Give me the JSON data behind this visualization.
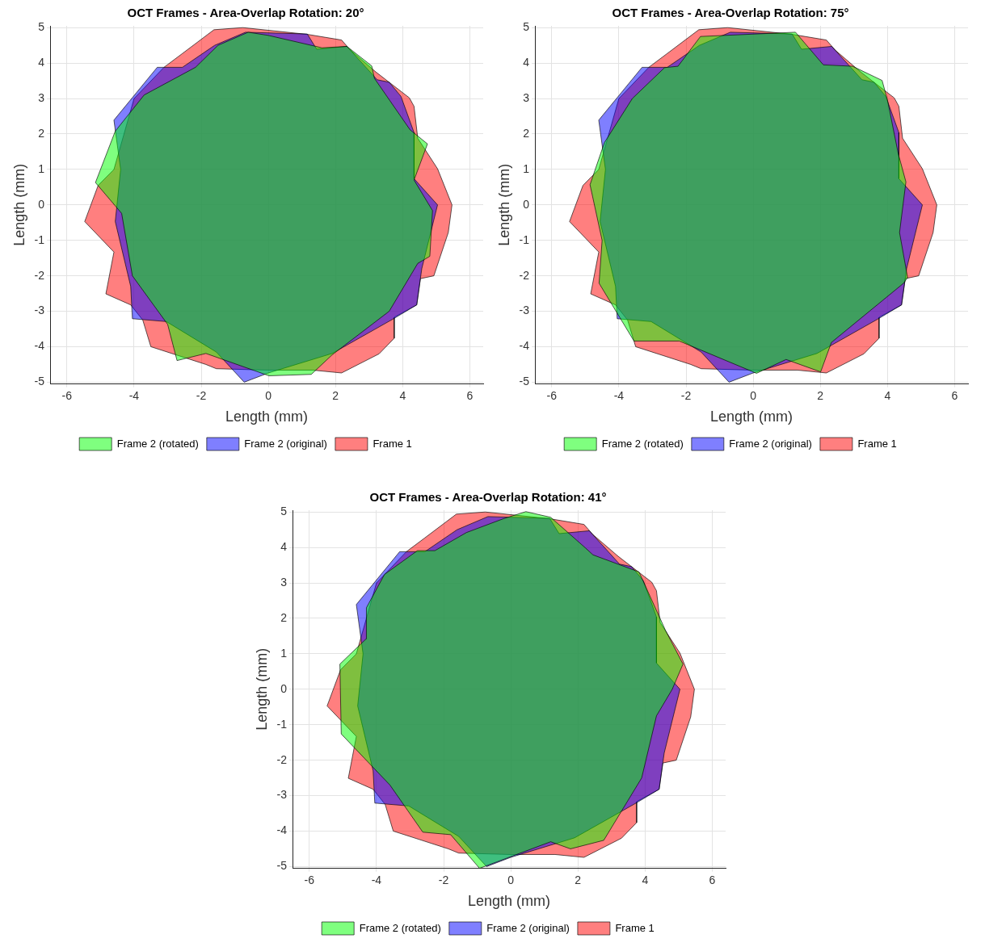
{
  "chart_data": [
    {
      "type": "area",
      "title": "OCT Frames - Area-Overlap Rotation: 20°",
      "xlabel": "Length (mm)",
      "ylabel": "Length (mm)",
      "xlim": [
        -6.5,
        6.4
      ],
      "ylim": [
        -5.05,
        5.05
      ],
      "xticks": [
        -6,
        -4,
        -2,
        0,
        2,
        4,
        6
      ],
      "yticks": [
        -5,
        -4,
        -3,
        -2,
        -1,
        0,
        1,
        2,
        3,
        4,
        5
      ],
      "grid": true,
      "legend": "bottom",
      "series": [
        {
          "name": "Frame 1",
          "color": "#ff0000",
          "x": [
            -0.76,
            1.16,
            2.18,
            2.45,
            3.2,
            4.2,
            4.34,
            4.45,
            5.04,
            5.47,
            5.36,
            4.93,
            4.53,
            4.42,
            3.75,
            3.75,
            3.3,
            2.18,
            1.32,
            0.0,
            -1.55,
            -1.86,
            -3.5,
            -3.74,
            -4.1,
            -4.84,
            -4.6,
            -5.47,
            -5.07,
            -4.6,
            -4.0,
            -3.11,
            -2.56,
            -1.62
          ],
          "values": [
            5.0,
            4.81,
            4.65,
            4.36,
            3.75,
            3.02,
            2.78,
            1.88,
            1.02,
            0.0,
            -0.78,
            -2.0,
            -2.08,
            -2.82,
            -3.17,
            -3.76,
            -4.2,
            -4.74,
            -4.66,
            -4.66,
            -4.62,
            -4.5,
            -4.0,
            -3.25,
            -2.82,
            -2.51,
            -1.33,
            -0.47,
            0.55,
            1.0,
            3.0,
            3.88,
            4.27,
            4.94
          ]
        },
        {
          "name": "Frame 2 (original)",
          "color": "#0000ff",
          "x": [
            -0.68,
            1.16,
            1.44,
            2.34,
            3.24,
            3.6,
            3.95,
            4.34,
            4.34,
            5.04,
            4.57,
            4.42,
            3.75,
            1.9,
            0.0,
            -0.72,
            -1.55,
            -3.04,
            -4.05,
            -4.1,
            -4.56,
            -4.4,
            -4.6,
            -3.31,
            -2.56,
            -1.6
          ],
          "values": [
            4.87,
            4.82,
            4.39,
            4.47,
            3.53,
            3.46,
            3.06,
            2.04,
            0.74,
            0.0,
            -1.8,
            -2.82,
            -3.2,
            -4.19,
            -4.74,
            -5.0,
            -4.15,
            -3.29,
            -3.21,
            -2.3,
            -0.47,
            1.0,
            2.39,
            3.88,
            3.88,
            4.5
          ]
        },
        {
          "name": "Frame 2 (rotated)",
          "color": "#00ff00",
          "x": [
            -0.6,
            0.0,
            1.6,
            2.34,
            3.08,
            3.16,
            4.22,
            4.74,
            4.34,
            4.89,
            4.81,
            4.45,
            3.6,
            1.9,
            1.28,
            0.02,
            -1.86,
            -2.72,
            -3.0,
            -4.05,
            -4.37,
            -5.15,
            -4.56,
            -3.7,
            -2.17,
            -1.5
          ],
          "values": [
            4.87,
            4.78,
            4.43,
            4.47,
            3.92,
            3.57,
            2.12,
            1.72,
            0.7,
            -0.16,
            -1.45,
            -1.65,
            -3.0,
            -4.23,
            -4.78,
            -4.82,
            -4.19,
            -4.39,
            -3.37,
            -2.0,
            -0.24,
            0.63,
            2.08,
            3.1,
            3.88,
            4.5
          ]
        }
      ]
    },
    {
      "type": "area",
      "title": "OCT Frames - Area-Overlap Rotation: 75°",
      "xlabel": "Length (mm)",
      "ylabel": "Length (mm)",
      "xlim": [
        -6.5,
        6.4
      ],
      "ylim": [
        -5.05,
        5.05
      ],
      "xticks": [
        -6,
        -4,
        -2,
        0,
        2,
        4,
        6
      ],
      "yticks": [
        -5,
        -4,
        -3,
        -2,
        -1,
        0,
        1,
        2,
        3,
        4,
        5
      ],
      "grid": true,
      "legend": "bottom",
      "series": [
        {
          "name": "Frame 1",
          "color": "#ff0000",
          "x": [
            -0.76,
            1.16,
            2.18,
            2.45,
            3.2,
            4.2,
            4.34,
            4.45,
            5.04,
            5.47,
            5.36,
            4.93,
            4.53,
            4.42,
            3.75,
            3.75,
            3.3,
            2.18,
            1.32,
            0.0,
            -1.55,
            -1.86,
            -3.5,
            -3.74,
            -4.1,
            -4.84,
            -4.6,
            -5.47,
            -5.07,
            -4.6,
            -4.0,
            -3.11,
            -2.56,
            -1.62
          ],
          "values": [
            5.0,
            4.81,
            4.65,
            4.36,
            3.75,
            3.02,
            2.78,
            1.88,
            1.02,
            0.0,
            -0.78,
            -2.0,
            -2.08,
            -2.82,
            -3.17,
            -3.76,
            -4.2,
            -4.74,
            -4.66,
            -4.66,
            -4.62,
            -4.5,
            -4.0,
            -3.25,
            -2.82,
            -2.51,
            -1.33,
            -0.47,
            0.55,
            1.0,
            3.0,
            3.88,
            4.27,
            4.94
          ]
        },
        {
          "name": "Frame 2 (original)",
          "color": "#0000ff",
          "x": [
            -0.68,
            1.16,
            1.44,
            2.34,
            3.24,
            3.6,
            3.95,
            4.34,
            4.34,
            5.04,
            4.57,
            4.42,
            3.75,
            1.9,
            0.0,
            -0.72,
            -1.55,
            -3.04,
            -4.05,
            -4.1,
            -4.56,
            -4.4,
            -4.6,
            -3.31,
            -2.56,
            -1.6
          ],
          "values": [
            4.87,
            4.82,
            4.39,
            4.47,
            3.53,
            3.46,
            3.06,
            2.04,
            0.74,
            0.0,
            -1.8,
            -2.82,
            -3.2,
            -4.19,
            -4.74,
            -5.0,
            -4.15,
            -3.29,
            -3.21,
            -2.3,
            -0.47,
            1.0,
            2.39,
            3.88,
            3.88,
            4.5
          ]
        },
        {
          "name": "Frame 2 (rotated)",
          "color": "#00ff00",
          "x": [
            -1.57,
            1.26,
            2.09,
            2.96,
            3.84,
            4.0,
            4.32,
            4.55,
            4.36,
            4.6,
            4.48,
            2.33,
            2.01,
            0.98,
            0.1,
            -2.2,
            -3.55,
            -4.59,
            -4.5,
            -4.86,
            -4.43,
            -3.6,
            -2.64,
            -2.24
          ],
          "values": [
            4.75,
            4.87,
            3.95,
            3.91,
            3.51,
            2.96,
            1.45,
            0.65,
            -0.78,
            -2.05,
            -2.21,
            -3.88,
            -4.71,
            -4.36,
            -4.75,
            -3.84,
            -3.84,
            -2.21,
            -1.0,
            0.57,
            1.76,
            3.0,
            3.87,
            3.91
          ]
        }
      ]
    },
    {
      "type": "area",
      "title": "OCT Frames - Area-Overlap Rotation: 41°",
      "xlabel": "Length (mm)",
      "ylabel": "Length (mm)",
      "xlim": [
        -6.5,
        6.4
      ],
      "ylim": [
        -5.05,
        5.05
      ],
      "xticks": [
        -6,
        -4,
        -2,
        0,
        2,
        4,
        6
      ],
      "yticks": [
        -5,
        -4,
        -3,
        -2,
        -1,
        0,
        1,
        2,
        3,
        4,
        5
      ],
      "grid": true,
      "legend": "bottom",
      "series": [
        {
          "name": "Frame 1",
          "color": "#ff0000",
          "x": [
            -0.76,
            1.16,
            2.18,
            2.45,
            3.2,
            4.2,
            4.34,
            4.45,
            5.04,
            5.47,
            5.36,
            4.93,
            4.53,
            4.42,
            3.75,
            3.75,
            3.3,
            2.18,
            1.32,
            0.0,
            -1.55,
            -1.86,
            -3.5,
            -3.74,
            -4.1,
            -4.84,
            -4.6,
            -5.47,
            -5.07,
            -4.6,
            -4.0,
            -3.11,
            -2.56,
            -1.62
          ],
          "values": [
            5.0,
            4.81,
            4.65,
            4.36,
            3.75,
            3.02,
            2.78,
            1.88,
            1.02,
            0.0,
            -0.78,
            -2.0,
            -2.08,
            -2.82,
            -3.17,
            -3.76,
            -4.2,
            -4.74,
            -4.66,
            -4.66,
            -4.62,
            -4.5,
            -4.0,
            -3.25,
            -2.82,
            -2.51,
            -1.33,
            -0.47,
            0.55,
            1.0,
            3.0,
            3.88,
            4.27,
            4.94
          ]
        },
        {
          "name": "Frame 2 (original)",
          "color": "#0000ff",
          "x": [
            -0.68,
            1.16,
            1.44,
            2.34,
            3.24,
            3.6,
            3.95,
            4.34,
            4.34,
            5.04,
            4.57,
            4.42,
            3.75,
            1.9,
            0.0,
            -0.72,
            -1.55,
            -3.04,
            -4.05,
            -4.1,
            -4.56,
            -4.4,
            -4.6,
            -3.31,
            -2.56,
            -1.6
          ],
          "values": [
            4.87,
            4.82,
            4.39,
            4.47,
            3.53,
            3.46,
            3.06,
            2.04,
            0.74,
            0.0,
            -1.8,
            -2.82,
            -3.2,
            -4.19,
            -4.74,
            -5.0,
            -4.15,
            -3.29,
            -3.21,
            -2.3,
            -0.47,
            1.0,
            2.39,
            3.88,
            3.88,
            4.5
          ]
        },
        {
          "name": "Frame 2 (rotated)",
          "color": "#00ff00",
          "x": [
            0.45,
            1.19,
            2.22,
            2.45,
            3.82,
            4.61,
            5.13,
            4.81,
            4.34,
            3.9,
            2.77,
            1.78,
            1.19,
            -0.93,
            -1.79,
            -2.62,
            -3.6,
            -5.05,
            -5.09,
            -4.31,
            -4.3,
            -3.76,
            -2.78,
            -2.26,
            -1.32,
            -0.22
          ],
          "values": [
            5.01,
            4.85,
            3.99,
            3.79,
            3.31,
            1.66,
            0.71,
            0.0,
            -0.75,
            -2.5,
            -4.26,
            -4.5,
            -4.3,
            -5.05,
            -4.1,
            -4.03,
            -2.7,
            -1.26,
            0.71,
            1.42,
            2.3,
            3.24,
            3.91,
            3.91,
            4.42,
            4.81
          ]
        }
      ]
    }
  ]
}
